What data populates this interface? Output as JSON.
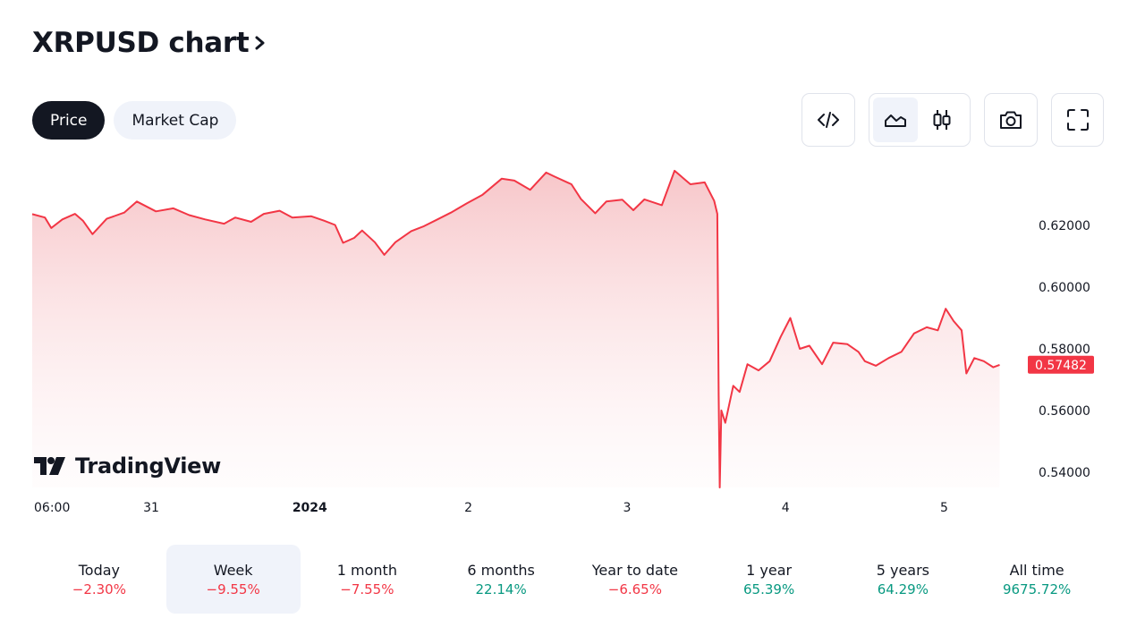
{
  "title": "XRPUSD chart",
  "tabs": [
    {
      "label": "Price",
      "active": true
    },
    {
      "label": "Market Cap",
      "active": false
    }
  ],
  "toolbar": {
    "buttons": [
      "embed-code-icon",
      "area-chart-icon",
      "candlestick-icon",
      "camera-icon",
      "fullscreen-icon"
    ],
    "selected": "area-chart-icon"
  },
  "brand": "TradingView",
  "colors": {
    "line": "#f23645",
    "area_top": "#f7c6c9",
    "negative": "#f23645",
    "positive": "#089981",
    "selected_bg": "#f0f3fa"
  },
  "chart_data": {
    "type": "area",
    "yticks": [
      "0.62000",
      "0.60000",
      "0.58000",
      "0.56000",
      "0.54000"
    ],
    "ylim": [
      0.535,
      0.6395
    ],
    "xticks": [
      {
        "label": "06:00",
        "t": 0,
        "bold": false
      },
      {
        "label": "31",
        "t": 0.75,
        "bold": false
      },
      {
        "label": "2024",
        "t": 1.75,
        "bold": true
      },
      {
        "label": "2",
        "t": 2.75,
        "bold": false
      },
      {
        "label": "3",
        "t": 3.75,
        "bold": false
      },
      {
        "label": "4",
        "t": 4.75,
        "bold": false
      },
      {
        "label": "5",
        "t": 5.75,
        "bold": false
      }
    ],
    "last_price": "0.57482",
    "last_value": 0.57482,
    "series": [
      {
        "points": [
          [
            0.0,
            0.6237
          ],
          [
            0.08,
            0.6226
          ],
          [
            0.12,
            0.6192
          ],
          [
            0.19,
            0.622
          ],
          [
            0.27,
            0.6238
          ],
          [
            0.32,
            0.6216
          ],
          [
            0.38,
            0.6172
          ],
          [
            0.47,
            0.6222
          ],
          [
            0.58,
            0.6242
          ],
          [
            0.66,
            0.6278
          ],
          [
            0.78,
            0.6246
          ],
          [
            0.89,
            0.6256
          ],
          [
            0.99,
            0.6234
          ],
          [
            1.09,
            0.622
          ],
          [
            1.21,
            0.6206
          ],
          [
            1.28,
            0.6226
          ],
          [
            1.38,
            0.6212
          ],
          [
            1.46,
            0.6238
          ],
          [
            1.56,
            0.6248
          ],
          [
            1.64,
            0.6226
          ],
          [
            1.76,
            0.623
          ],
          [
            1.84,
            0.6216
          ],
          [
            1.91,
            0.6202
          ],
          [
            1.96,
            0.6144
          ],
          [
            2.03,
            0.616
          ],
          [
            2.08,
            0.6184
          ],
          [
            2.16,
            0.6146
          ],
          [
            2.22,
            0.6105
          ],
          [
            2.29,
            0.6146
          ],
          [
            2.39,
            0.6182
          ],
          [
            2.47,
            0.6198
          ],
          [
            2.54,
            0.6216
          ],
          [
            2.64,
            0.6242
          ],
          [
            2.74,
            0.6272
          ],
          [
            2.84,
            0.63
          ],
          [
            2.96,
            0.6352
          ],
          [
            3.04,
            0.6346
          ],
          [
            3.14,
            0.6316
          ],
          [
            3.24,
            0.6372
          ],
          [
            3.29,
            0.636
          ],
          [
            3.4,
            0.6334
          ],
          [
            3.46,
            0.6286
          ],
          [
            3.55,
            0.624
          ],
          [
            3.62,
            0.6278
          ],
          [
            3.72,
            0.6284
          ],
          [
            3.79,
            0.625
          ],
          [
            3.86,
            0.6285
          ],
          [
            3.97,
            0.6266
          ],
          [
            4.05,
            0.6378
          ],
          [
            4.15,
            0.6334
          ],
          [
            4.24,
            0.634
          ],
          [
            4.3,
            0.628
          ],
          [
            4.32,
            0.6238
          ],
          [
            4.328,
            0.565
          ],
          [
            4.335,
            0.535
          ],
          [
            4.345,
            0.56
          ],
          [
            4.37,
            0.556
          ],
          [
            4.42,
            0.568
          ],
          [
            4.46,
            0.566
          ],
          [
            4.51,
            0.575
          ],
          [
            4.58,
            0.573
          ],
          [
            4.65,
            0.576
          ],
          [
            4.72,
            0.584
          ],
          [
            4.78,
            0.59
          ],
          [
            4.84,
            0.58
          ],
          [
            4.9,
            0.581
          ],
          [
            4.98,
            0.575
          ],
          [
            5.05,
            0.582
          ],
          [
            5.14,
            0.5815
          ],
          [
            5.21,
            0.579
          ],
          [
            5.25,
            0.576
          ],
          [
            5.32,
            0.5745
          ],
          [
            5.4,
            0.577
          ],
          [
            5.48,
            0.579
          ],
          [
            5.56,
            0.585
          ],
          [
            5.64,
            0.587
          ],
          [
            5.71,
            0.586
          ],
          [
            5.76,
            0.593
          ],
          [
            5.81,
            0.589
          ],
          [
            5.86,
            0.586
          ],
          [
            5.89,
            0.572
          ],
          [
            5.94,
            0.577
          ],
          [
            6.0,
            0.576
          ],
          [
            6.06,
            0.574
          ],
          [
            6.1,
            0.5748
          ]
        ]
      }
    ]
  },
  "periods": [
    {
      "label": "Today",
      "value": "−2.30%",
      "dir": "neg",
      "selected": false
    },
    {
      "label": "Week",
      "value": "−9.55%",
      "dir": "neg",
      "selected": true
    },
    {
      "label": "1 month",
      "value": "−7.55%",
      "dir": "neg",
      "selected": false
    },
    {
      "label": "6 months",
      "value": "22.14%",
      "dir": "pos",
      "selected": false
    },
    {
      "label": "Year to date",
      "value": "−6.65%",
      "dir": "neg",
      "selected": false
    },
    {
      "label": "1 year",
      "value": "65.39%",
      "dir": "pos",
      "selected": false
    },
    {
      "label": "5 years",
      "value": "64.29%",
      "dir": "pos",
      "selected": false
    },
    {
      "label": "All time",
      "value": "9675.72%",
      "dir": "pos",
      "selected": false
    }
  ]
}
